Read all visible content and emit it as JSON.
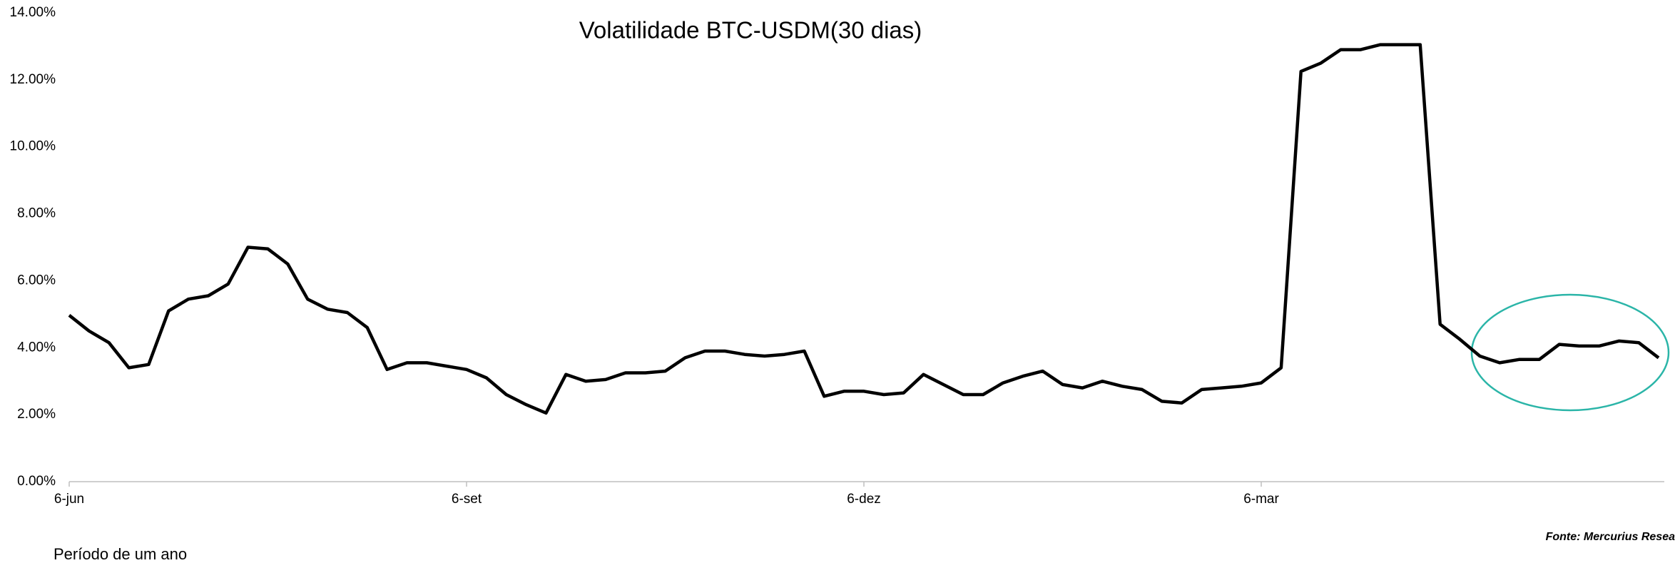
{
  "chart_data": {
    "type": "line",
    "title": "Volatilidade BTC-USDM(30 dias)",
    "categories": [
      "6-jun",
      null,
      null,
      null,
      null,
      null,
      null,
      null,
      null,
      null,
      null,
      null,
      null,
      null,
      null,
      null,
      null,
      null,
      null,
      null,
      "6-set",
      null,
      null,
      null,
      null,
      null,
      null,
      null,
      null,
      null,
      null,
      null,
      null,
      null,
      null,
      null,
      null,
      null,
      null,
      null,
      "6-dez",
      null,
      null,
      null,
      null,
      null,
      null,
      null,
      null,
      null,
      null,
      null,
      null,
      null,
      null,
      null,
      null,
      null,
      null,
      null,
      "6-mar",
      null,
      null,
      null,
      null,
      null,
      null,
      null,
      null,
      null,
      null,
      null,
      null,
      null,
      null,
      null,
      null,
      null,
      null,
      null,
      null
    ],
    "values": [
      4.97,
      4.5,
      4.15,
      3.4,
      3.5,
      5.1,
      5.45,
      5.55,
      5.9,
      7.0,
      6.95,
      6.5,
      5.45,
      5.15,
      5.05,
      4.6,
      3.35,
      3.55,
      3.55,
      3.45,
      3.35,
      3.1,
      2.6,
      2.3,
      2.05,
      3.2,
      3.0,
      3.05,
      3.25,
      3.25,
      3.3,
      3.7,
      3.9,
      3.9,
      3.8,
      3.75,
      3.8,
      3.9,
      2.55,
      2.7,
      2.7,
      2.6,
      2.65,
      3.2,
      2.9,
      2.6,
      2.6,
      2.95,
      3.15,
      3.3,
      2.9,
      2.8,
      3.0,
      2.85,
      2.75,
      2.4,
      2.35,
      2.75,
      2.8,
      2.85,
      2.95,
      3.4,
      12.25,
      12.5,
      12.9,
      12.9,
      13.05,
      13.05,
      13.05,
      4.7,
      4.25,
      3.75,
      3.55,
      3.65,
      3.65,
      4.1,
      4.05,
      4.05,
      4.2,
      4.15,
      3.7
    ],
    "color": "#000000",
    "ylim": [
      0,
      14
    ],
    "yticks": [
      {
        "value": 0,
        "label": "0.00%"
      },
      {
        "value": 2,
        "label": "2.00%"
      },
      {
        "value": 4,
        "label": "4.00%"
      },
      {
        "value": 6,
        "label": "6.00%"
      },
      {
        "value": 8,
        "label": "8.00%"
      },
      {
        "value": 10,
        "label": "10.00%"
      },
      {
        "value": 12,
        "label": "12.00%"
      },
      {
        "value": 14,
        "label": "14.00%"
      }
    ],
    "grid": false,
    "source": "Fonte: Mercurius Resea",
    "note": "Período de um ano"
  }
}
